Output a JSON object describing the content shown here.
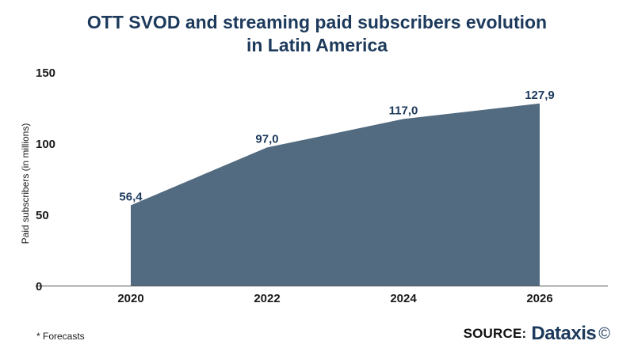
{
  "title_lines": [
    "OTT SVOD and streaming paid subscribers evolution",
    "in Latin America"
  ],
  "footnote": "* Forecasts",
  "source": {
    "label": "SOURCE:",
    "brand": "Dataxis",
    "mark": "©"
  },
  "chart_data": {
    "type": "area",
    "x": [
      "2020",
      "2022",
      "2024",
      "2026"
    ],
    "values": [
      56.4,
      97.0,
      117.0,
      127.9
    ],
    "value_labels": [
      "56,4",
      "97,0",
      "117,0",
      "127,9"
    ],
    "yticks": [
      "0",
      "50",
      "100",
      "150"
    ],
    "ylim": [
      0,
      150
    ],
    "ylabel": "Paid subscribers (in millions)",
    "xlabel": "",
    "grid": false,
    "colors": {
      "area": "#526b80",
      "axis": "#555555"
    }
  }
}
